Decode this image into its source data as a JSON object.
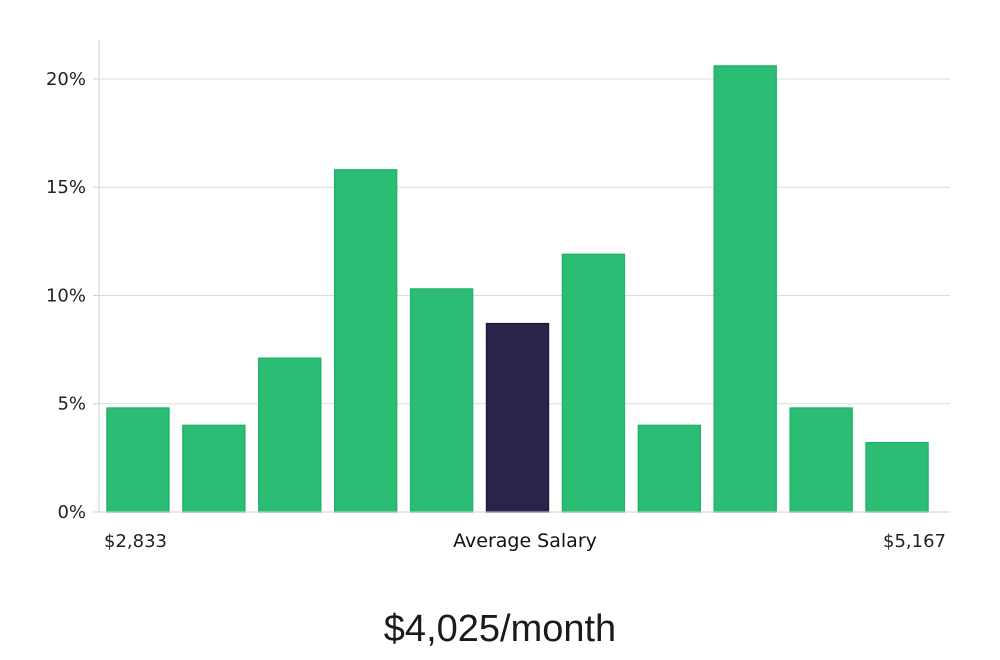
{
  "chart_data": {
    "type": "bar",
    "title": "",
    "xlabel": "Average Salary",
    "x_range_labels": {
      "min": "$2,833",
      "max": "$5,167"
    },
    "ylabel": "",
    "ylim": [
      0,
      21.8
    ],
    "y_ticks": [
      0,
      5,
      10,
      15,
      20
    ],
    "y_tick_labels": [
      "0%",
      "5%",
      "10%",
      "15%",
      "20%"
    ],
    "grid": true,
    "values": [
      4.8,
      4.0,
      7.1,
      15.8,
      10.3,
      8.7,
      11.9,
      4.0,
      20.6,
      4.8,
      3.2
    ],
    "highlight_index": 5,
    "colors": {
      "bar": "#2bbd74",
      "highlight": "#29254a",
      "grid": "#dddddd",
      "axis": "#d0d0d0"
    }
  },
  "caption": "$4,025/month"
}
